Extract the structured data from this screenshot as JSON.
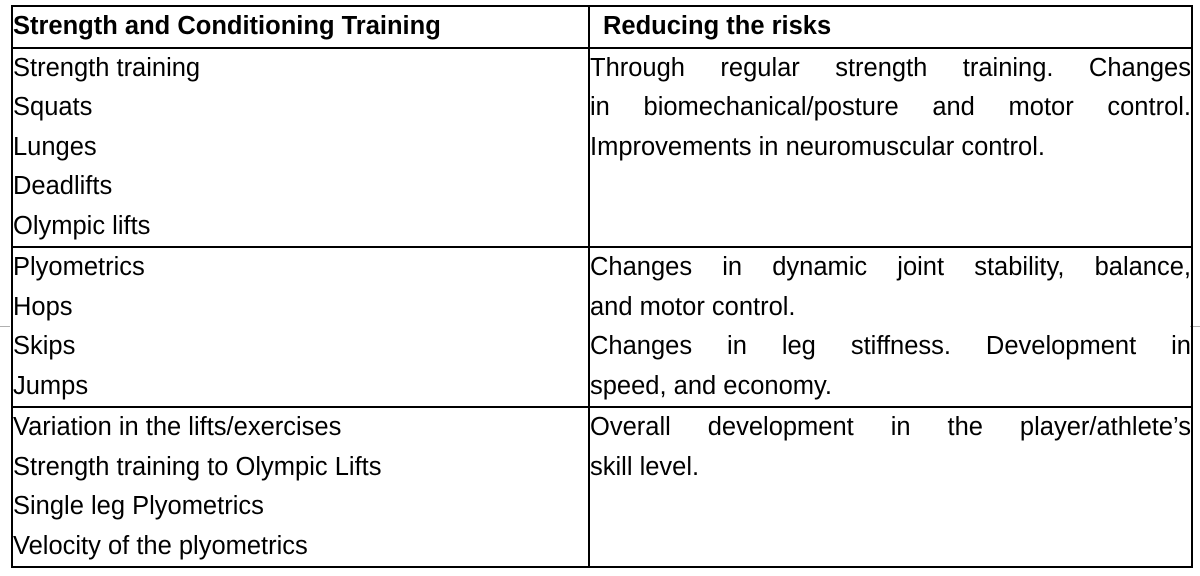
{
  "table": {
    "headers": {
      "left": "Strength and Conditioning Training",
      "right": "Reducing the risks"
    },
    "rows": [
      {
        "left": [
          "Strength training",
          "Squats",
          "Lunges",
          "Deadlifts",
          "Olympic lifts"
        ],
        "right": [
          "Through regular strength training.  Changes",
          "in biomechanical/posture and motor control.",
          "Improvements in neuromuscular control."
        ]
      },
      {
        "left": [
          "Plyometrics",
          "Hops",
          "Skips",
          "Jumps"
        ],
        "right": [
          "Changes in dynamic joint stability, balance,",
          "and motor control.",
          "Changes in leg stiffness.  Development in",
          "speed, and economy."
        ]
      },
      {
        "left": [
          "Variation in the lifts/exercises",
          "Strength training to Olympic Lifts",
          "Single leg Plyometrics",
          "Velocity of the plyometrics"
        ],
        "right": [
          "Overall development in the player/athlete’s",
          "skill level."
        ]
      }
    ]
  }
}
